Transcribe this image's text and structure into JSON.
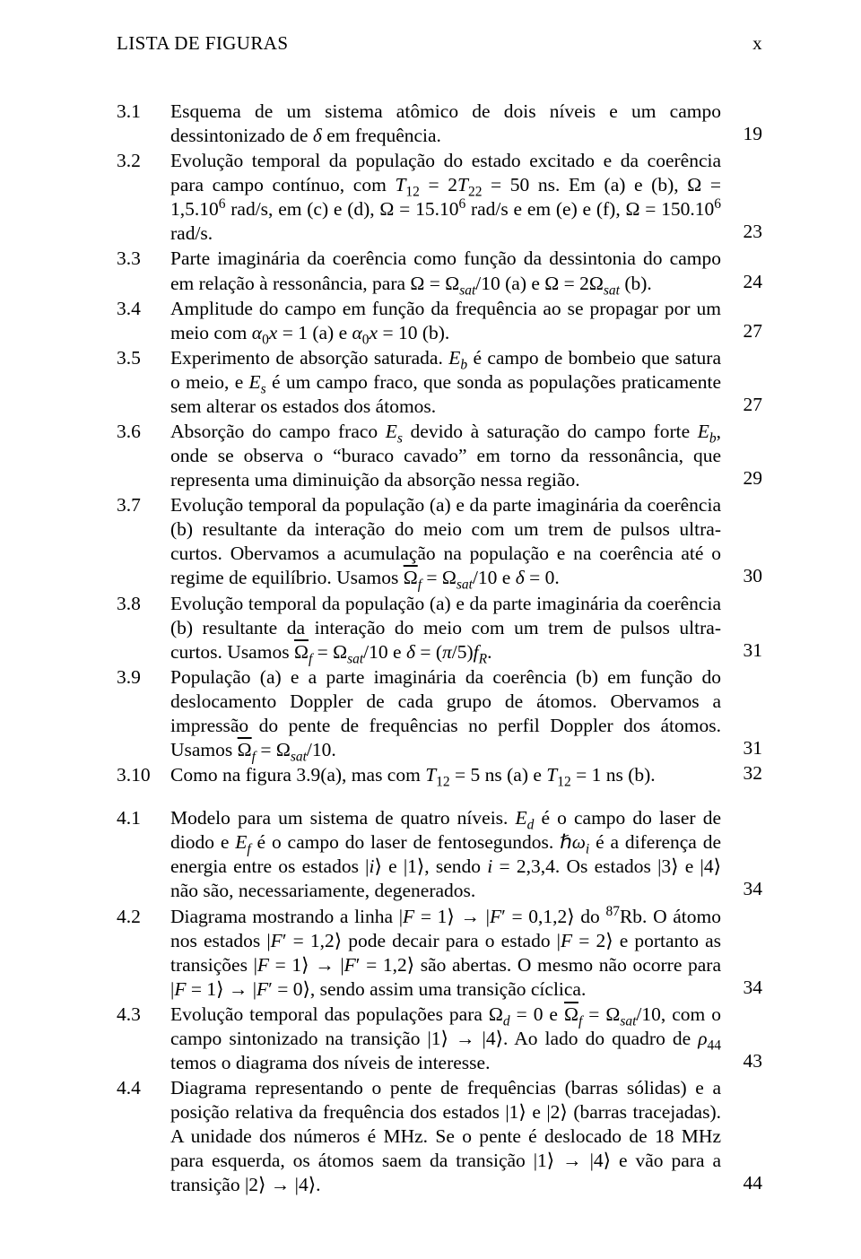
{
  "header": {
    "left": "LISTA DE FIGURAS",
    "right": "x"
  },
  "groups": [
    {
      "entries": [
        {
          "num": "3.1",
          "html": "Esquema de um sistema atômico de dois níveis e um campo dessintonizado de <i>δ</i> em frequência.",
          "page": "19"
        },
        {
          "num": "3.2",
          "html": "Evolução temporal da população do estado excitado e da coerência para campo contínuo, com <i>T</i><sub>12</sub> = 2<i>T</i><sub>22</sub> = 50 ns. Em (a) e (b), Ω = 1,5.10<sup>6</sup> rad/s, em (c) e (d), Ω = 15.10<sup>6</sup> rad/s e em (e) e (f), Ω = 150.10<sup>6</sup> rad/s.",
          "page": "23"
        },
        {
          "num": "3.3",
          "html": "Parte imaginária da coerência como função da dessintonia do campo em relação à ressonância, para Ω = Ω<sub><i>sat</i></sub>/10 (a) e Ω = 2Ω<sub><i>sat</i></sub> (b).",
          "page": "24"
        },
        {
          "num": "3.4",
          "html": "Amplitude do campo em função da frequência ao se propagar por um meio com <i>α</i><sub>0</sub><i>x</i> = 1 (a) e <i>α</i><sub>0</sub><i>x</i> = 10 (b).",
          "page": "27"
        },
        {
          "num": "3.5",
          "html": "Experimento de absorção saturada. <i>E<sub>b</sub></i> é campo de bombeio que satura o meio, e <i>E<sub>s</sub></i> é um campo fraco, que sonda as populações praticamente sem alterar os estados dos átomos.",
          "page": "27"
        },
        {
          "num": "3.6",
          "html": "Absorção do campo fraco <i>E<sub>s</sub></i> devido à saturação do campo forte <i>E<sub>b</sub></i>, onde se observa o “buraco cavado” em torno da ressonância, que representa uma diminuição da absorção nessa região.",
          "page": "29"
        },
        {
          "num": "3.7",
          "html": "Evolução temporal da população (a) e da parte imaginária da coerência (b) resultante da interação do meio com um trem de pulsos ultra-curtos. Obervamos a acumulação na população e na coerência até o regime de equilíbrio. Usamos <span class=\"obar\">Ω</span><sub><i>f</i></sub> = Ω<sub><i>sat</i></sub>/10 e <i>δ</i> = 0.",
          "page": "30"
        },
        {
          "num": "3.8",
          "html": "Evolução temporal da população (a) e da parte imaginária da coerência (b) resultante da interação do meio com um trem de pulsos ultra-curtos. Usamos <span class=\"obar\">Ω</span><sub><i>f</i></sub> = Ω<sub><i>sat</i></sub>/10 e <i>δ</i> = (<i>π</i>/5)<i>f<sub>R</sub></i>.",
          "page": "31"
        },
        {
          "num": "3.9",
          "html": "População (a) e a parte imaginária da coerência (b) em função do deslocamento Doppler de cada grupo de átomos. Obervamos a impressão do pente de frequências no perfil Doppler dos átomos. Usamos <span class=\"obar\">Ω</span><sub><i>f</i></sub> = Ω<sub><i>sat</i></sub>/10.",
          "page": "31"
        },
        {
          "num": "3.10",
          "html": "Como na figura 3.9(a), mas com <i>T</i><sub>12</sub> = 5 ns (a) e <i>T</i><sub>12</sub> = 1 ns (b).",
          "page": "32"
        }
      ]
    },
    {
      "entries": [
        {
          "num": "4.1",
          "html": "Modelo para um sistema de quatro níveis. <i>E<sub>d</sub></i> é o campo do laser de diodo e <i>E<sub>f</sub></i> é o campo do laser de fentosegundos. ℏ<i>ω<sub>i</sub></i> é a diferença de energia entre os estados |<i>i</i>⟩ e |1⟩, sendo <i>i</i> = 2,3,4. Os estados |3⟩ e |4⟩ não são, necessariamente, degenerados.",
          "page": "34"
        },
        {
          "num": "4.2",
          "html": "Diagrama mostrando a linha |<i>F</i> = 1⟩ → |<i>F</i>′ = 0,1,2⟩ do <sup>87</sup>Rb. O átomo nos estados |<i>F</i>′ = 1,2⟩ pode decair para o estado |<i>F</i> = 2⟩ e portanto as transições |<i>F</i> = 1⟩ → |<i>F</i>′ = 1,2⟩ são abertas. O mesmo não ocorre para |<i>F</i> = 1⟩ → |<i>F</i>′ = 0⟩, sendo assim uma transição cíclica.",
          "page": "34"
        },
        {
          "num": "4.3",
          "html": "Evolução temporal das populações para Ω<sub><i>d</i></sub> = 0 e <span class=\"obar\">Ω</span><sub><i>f</i></sub> = Ω<sub><i>sat</i></sub>/10, com o campo sintonizado na transição |1⟩ → |4⟩. Ao lado do quadro de <i>ρ</i><sub>44</sub> temos o diagrama dos níveis de interesse.",
          "page": "43"
        },
        {
          "num": "4.4",
          "html": "Diagrama representando o pente de frequências (barras sólidas) e a posição relativa da frequência dos estados |1⟩ e |2⟩ (barras tracejadas). A unidade dos números é MHz. Se o pente é deslocado de 18 MHz para esquerda, os átomos saem da transição |1⟩ → |4⟩ e vão para a transição |2⟩ → |4⟩.",
          "page": "44"
        }
      ]
    }
  ]
}
